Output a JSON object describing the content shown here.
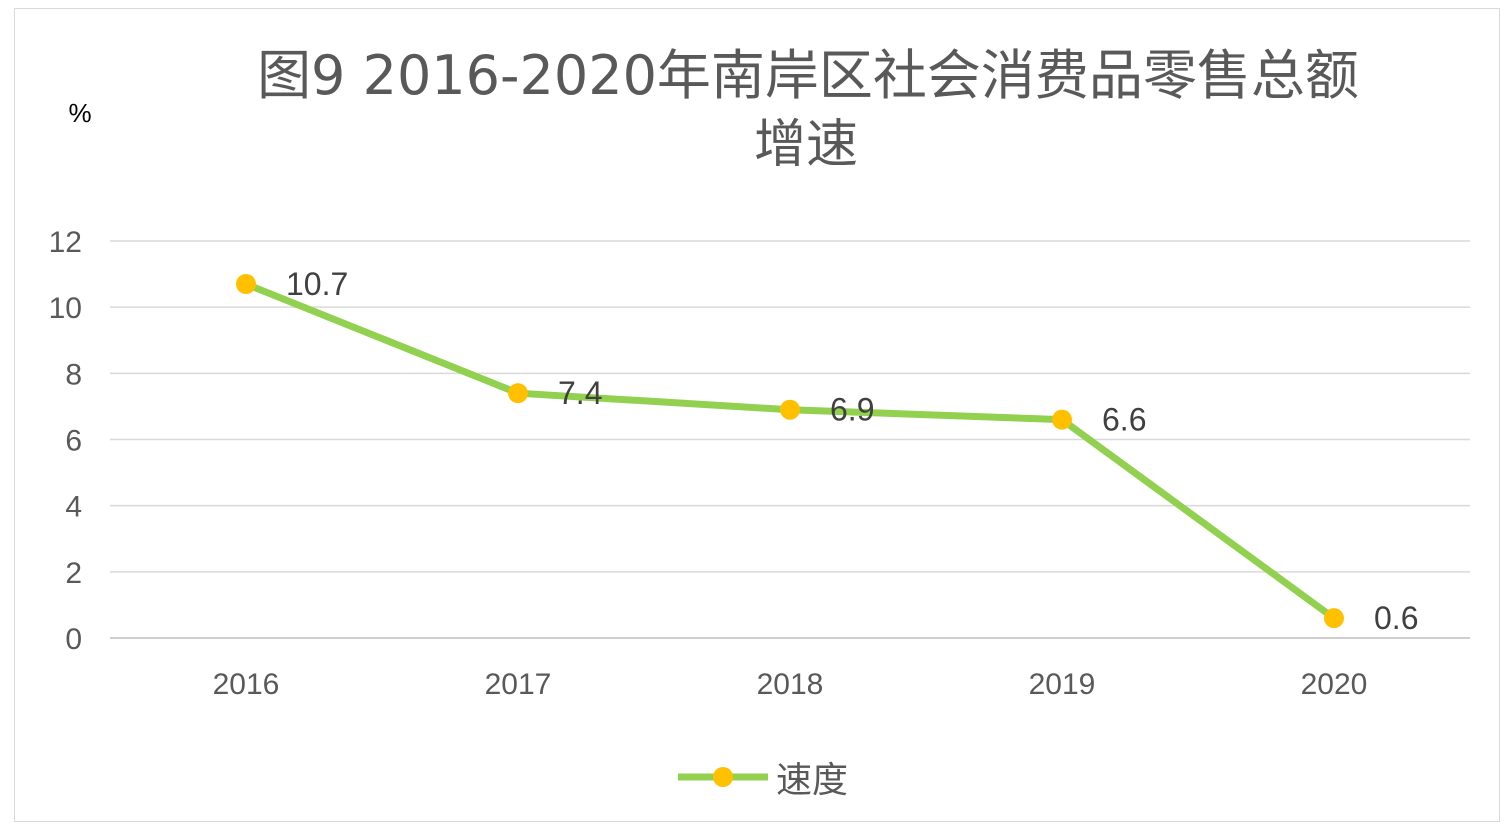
{
  "chart_data": {
    "type": "line",
    "title_line1": "图9  2016-2020年南岸区社会消费品零售总额",
    "title_line2": "增速",
    "unit": "%",
    "categories": [
      "2016",
      "2017",
      "2018",
      "2019",
      "2020"
    ],
    "series": [
      {
        "name": "速度",
        "values": [
          10.7,
          7.4,
          6.9,
          6.6,
          0.6
        ],
        "line_color": "#92d050",
        "marker_color": "#ffc000"
      }
    ],
    "data_labels": [
      "10.7",
      "7.4",
      "6.9",
      "6.6",
      "0.6"
    ],
    "y_ticks": [
      "0",
      "2",
      "4",
      "6",
      "8",
      "10",
      "12"
    ],
    "ylim": [
      0,
      12
    ],
    "grid": true,
    "legend_position": "bottom"
  }
}
